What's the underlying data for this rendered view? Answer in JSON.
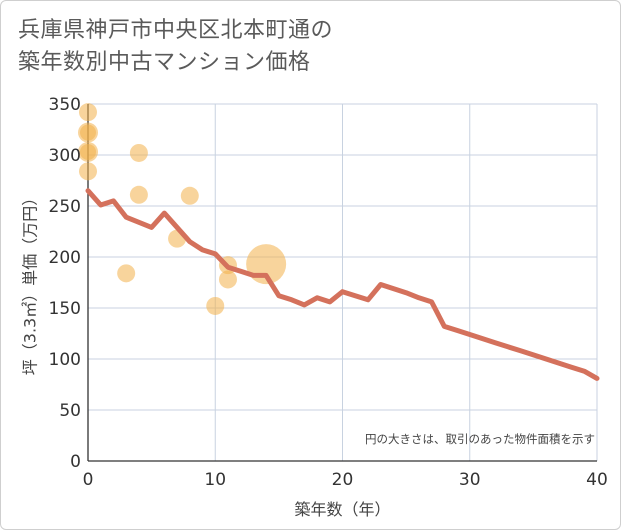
{
  "title": {
    "line1": "兵庫県神戸市中央区北本町通の",
    "line2": "築年数別中古マンション価格"
  },
  "colors": {
    "line": "#d4715c",
    "bubble": "#f2b04a",
    "grid": "#c8d2e0"
  },
  "chart_data": {
    "type": "scatter",
    "xlabel": "築年数（年）",
    "ylabel": "坪（3.3㎡）単価（万円）",
    "xlim": [
      0,
      40
    ],
    "ylim": [
      0,
      350
    ],
    "xticks": [
      "0",
      "10",
      "20",
      "30",
      "40"
    ],
    "yticks": [
      "0",
      "50",
      "100",
      "150",
      "200",
      "250",
      "300",
      "350"
    ],
    "annotation": "円の大きさは、取引のあった物件面積を示す",
    "grid": true,
    "bubbles": [
      {
        "x": 0,
        "y": 342,
        "r": 9
      },
      {
        "x": 0,
        "y": 322,
        "r": 10
      },
      {
        "x": 0,
        "y": 322,
        "r": 8
      },
      {
        "x": 0,
        "y": 303,
        "r": 10
      },
      {
        "x": 0,
        "y": 303,
        "r": 8
      },
      {
        "x": 0,
        "y": 284,
        "r": 9
      },
      {
        "x": 3,
        "y": 184,
        "r": 9
      },
      {
        "x": 4,
        "y": 302,
        "r": 9
      },
      {
        "x": 4,
        "y": 261,
        "r": 9
      },
      {
        "x": 7,
        "y": 218,
        "r": 9
      },
      {
        "x": 8,
        "y": 260,
        "r": 9
      },
      {
        "x": 10,
        "y": 152,
        "r": 9
      },
      {
        "x": 11,
        "y": 192,
        "r": 9
      },
      {
        "x": 11,
        "y": 178,
        "r": 9
      },
      {
        "x": 14,
        "y": 193,
        "r": 20
      }
    ],
    "series": [
      {
        "x": [
          0,
          1,
          2,
          3,
          4,
          5,
          6,
          7,
          8,
          9,
          10,
          11,
          12,
          13,
          14,
          15,
          16,
          17,
          18,
          19,
          20,
          21,
          22,
          23,
          24,
          25,
          26,
          27,
          28,
          29,
          30,
          31,
          32,
          33,
          34,
          35,
          36,
          37,
          38,
          39,
          40
        ],
        "y": [
          265,
          251,
          255,
          239,
          234,
          229,
          243,
          229,
          215,
          207,
          203,
          190,
          186,
          182,
          182,
          162,
          158,
          153,
          160,
          156,
          166,
          162,
          158,
          173,
          169,
          165,
          160,
          156,
          132,
          128,
          124,
          120,
          116,
          112,
          108,
          104,
          100,
          96,
          92,
          88,
          81
        ]
      }
    ]
  }
}
